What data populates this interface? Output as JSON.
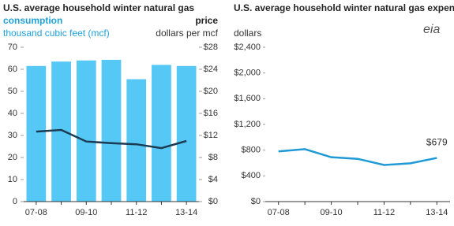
{
  "logo": "eia",
  "chart_data": [
    {
      "type": "bar",
      "title": "U.S. average household winter natural gas",
      "ylabel": "thousand cubic feet (mcf)",
      "y2label": "dollars per mcf",
      "categories": [
        "07-08",
        null,
        "09-10",
        null,
        "11-12",
        null,
        "13-14"
      ],
      "series": [
        {
          "name": "consumption",
          "type": "bar",
          "color": "#55c8f5",
          "values": [
            61.5,
            63.5,
            64,
            64.3,
            55.5,
            62,
            61.5
          ]
        },
        {
          "name": "price",
          "type": "line",
          "axis": "y2",
          "color": "#1d3b52",
          "values": [
            12.7,
            13.0,
            10.9,
            10.6,
            10.4,
            9.7,
            11.0
          ]
        }
      ],
      "ylim": [
        0,
        70
      ],
      "yticks": [
        0,
        10,
        20,
        30,
        40,
        50,
        60,
        70
      ],
      "y2lim": [
        0,
        28
      ],
      "y2ticks": [
        {
          "value": 0,
          "label": "$0"
        },
        {
          "value": 4,
          "label": "$4"
        },
        {
          "value": 8,
          "label": "$8"
        },
        {
          "value": 12,
          "label": "$12"
        },
        {
          "value": 16,
          "label": "$16"
        },
        {
          "value": 20,
          "label": "$20"
        },
        {
          "value": 24,
          "label": "$24"
        },
        {
          "value": 28,
          "label": "$28"
        }
      ],
      "grid": false
    },
    {
      "type": "line",
      "title": "U.S. average household winter natural gas expenditures",
      "ylabel": "dollars",
      "color": "#1e9ad6",
      "categories": [
        "07-08",
        null,
        "09-10",
        null,
        "11-12",
        null,
        "13-14"
      ],
      "values": [
        780,
        815,
        690,
        665,
        570,
        595,
        679
      ],
      "value_labels": [
        null,
        null,
        null,
        null,
        null,
        null,
        "$679"
      ],
      "ylim": [
        0,
        2400
      ],
      "yticks": [
        {
          "value": 0,
          "label": "$0"
        },
        {
          "value": 400,
          "label": "$400"
        },
        {
          "value": 800,
          "label": "$800"
        },
        {
          "value": 1200,
          "label": "$1,200"
        },
        {
          "value": 1600,
          "label": "$1,600"
        },
        {
          "value": 2000,
          "label": "$2,000"
        },
        {
          "value": 2400,
          "label": "$2,400"
        }
      ],
      "grid": false
    }
  ]
}
